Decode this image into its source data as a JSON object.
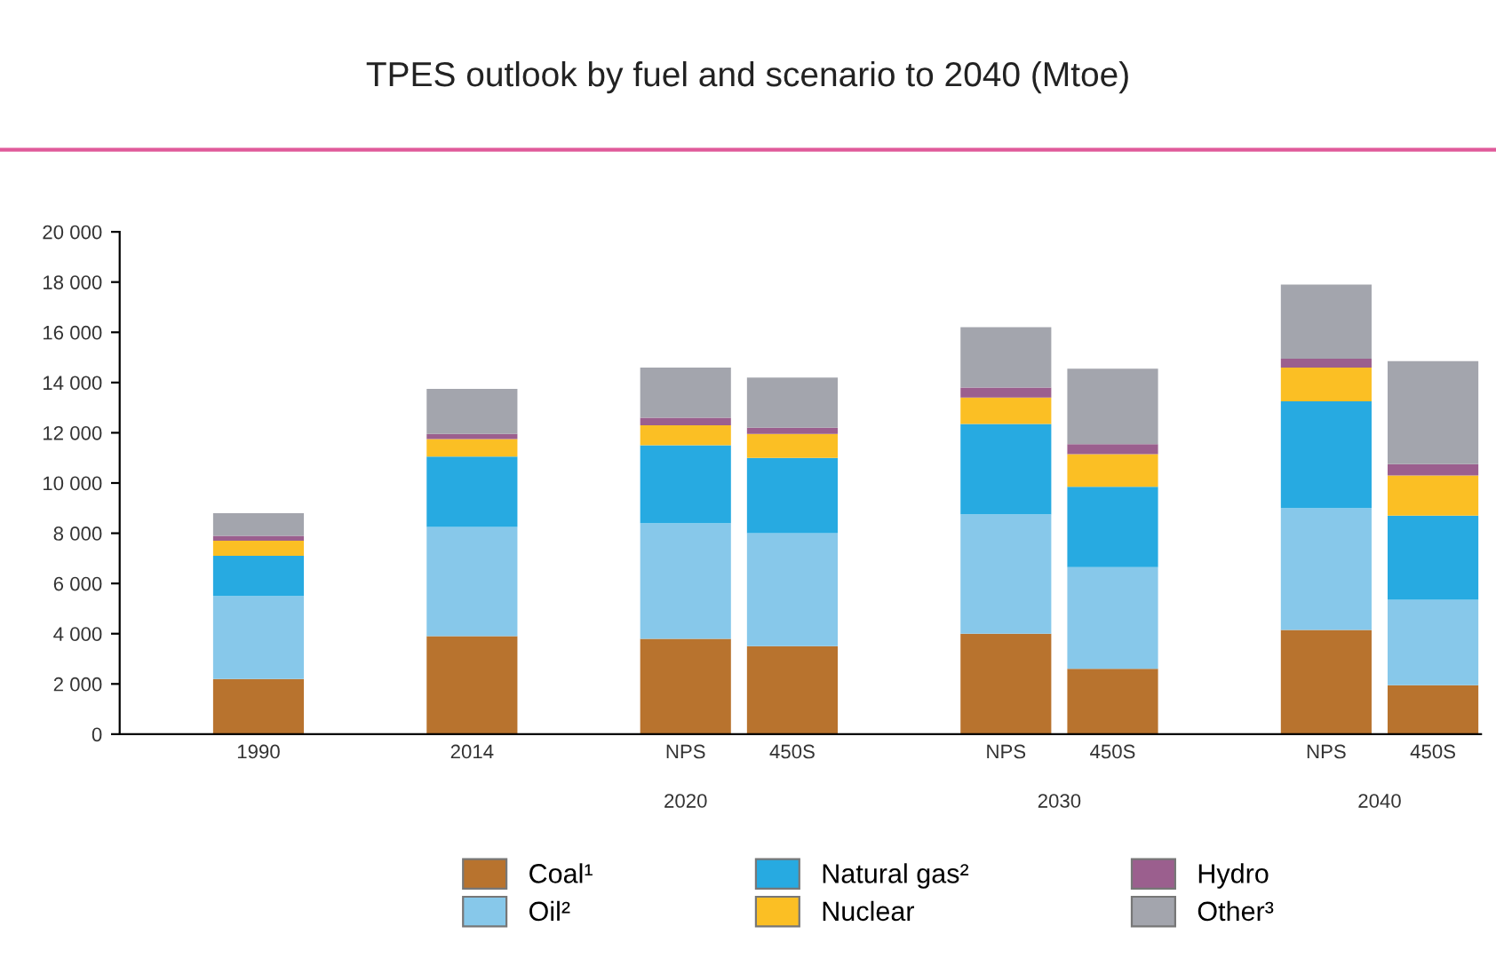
{
  "chart_data": {
    "type": "bar",
    "stacked": true,
    "title": "TPES outlook by fuel and scenario to 2040 (Mtoe)",
    "categories": [
      "1990",
      "2014",
      "NPS",
      "450S",
      "NPS",
      "450S",
      "NPS",
      "450S"
    ],
    "annotations": [
      "2020",
      "2030",
      "2040"
    ],
    "series": [
      {
        "name": "Coal¹",
        "color": "#b8732e",
        "values": [
          2200,
          3900,
          3800,
          3500,
          4000,
          2600,
          4150,
          1950
        ]
      },
      {
        "name": "Oil²",
        "color": "#87c8ea",
        "values": [
          3300,
          4350,
          4600,
          4500,
          4750,
          4050,
          4850,
          3400
        ]
      },
      {
        "name": "Natural gas²",
        "color": "#27aae1",
        "values": [
          1600,
          2800,
          3100,
          3000,
          3600,
          3200,
          4250,
          3350
        ]
      },
      {
        "name": "Nuclear",
        "color": "#fbbf24",
        "values": [
          600,
          700,
          800,
          950,
          1050,
          1300,
          1350,
          1600
        ]
      },
      {
        "name": "Hydro",
        "color": "#9b5f8e",
        "values": [
          200,
          200,
          300,
          250,
          400,
          400,
          350,
          450
        ]
      },
      {
        "name": "Other³",
        "color": "#a3a5ad",
        "values": [
          900,
          1800,
          2000,
          2000,
          2400,
          3000,
          2950,
          4100
        ]
      }
    ],
    "ylim": [
      0,
      20000
    ],
    "yticks": [
      0,
      {
        "value": 2000,
        "label": "2 000"
      },
      {
        "value": 4000,
        "label": "4 000"
      },
      {
        "value": 6000,
        "label": "6 000"
      },
      {
        "value": 8000,
        "label": "8 000"
      },
      {
        "value": 10000,
        "label": "10 000"
      },
      {
        "value": 12000,
        "label": "12 000"
      },
      {
        "value": 14000,
        "label": "14 000"
      },
      {
        "value": 16000,
        "label": "16 000"
      },
      {
        "value": 18000,
        "label": "18 000"
      },
      {
        "value": 20000,
        "label": "20 000"
      }
    ],
    "grid": false,
    "legend": "bottom"
  }
}
